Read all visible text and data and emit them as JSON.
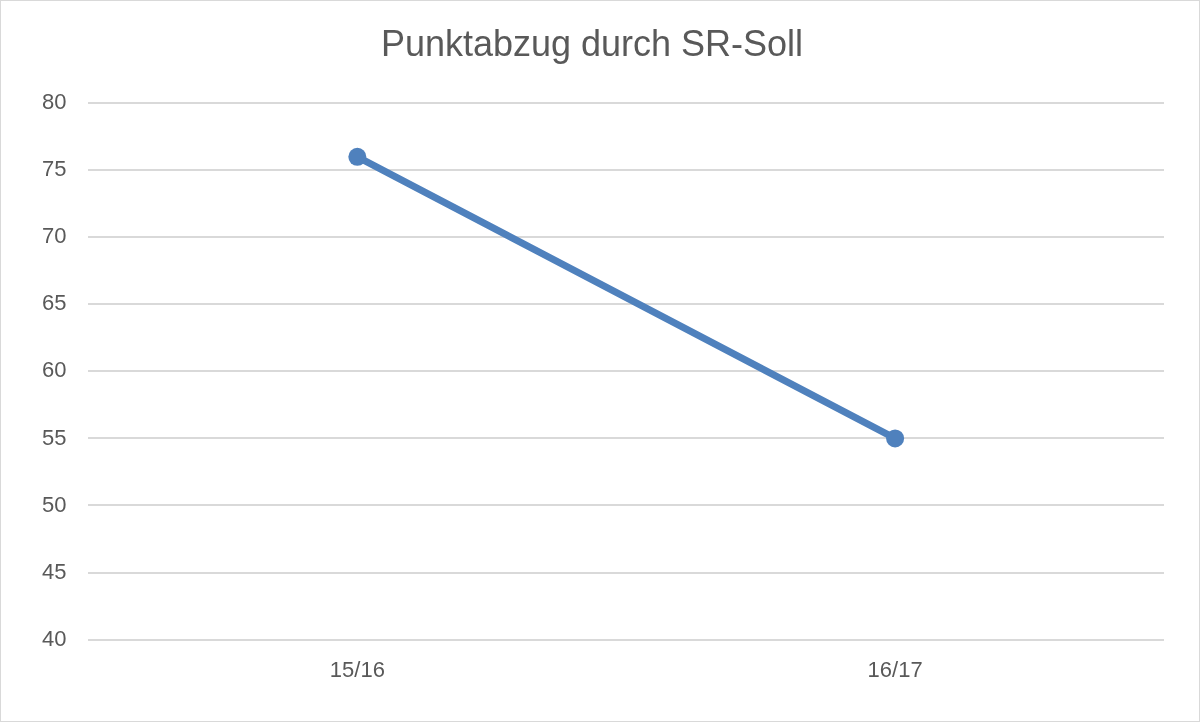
{
  "chart_data": {
    "type": "line",
    "title": "Punktabzug durch SR-Soll",
    "categories": [
      "15/16",
      "16/17"
    ],
    "series": [
      {
        "color": "#4f81bd",
        "values": [
          76,
          55
        ]
      }
    ],
    "ylim": [
      40,
      80
    ],
    "yticks": [
      40,
      45,
      50,
      55,
      60,
      65,
      70,
      75,
      80
    ],
    "grid": "y",
    "legend": false,
    "marker": "circle",
    "line_style": "solid"
  }
}
